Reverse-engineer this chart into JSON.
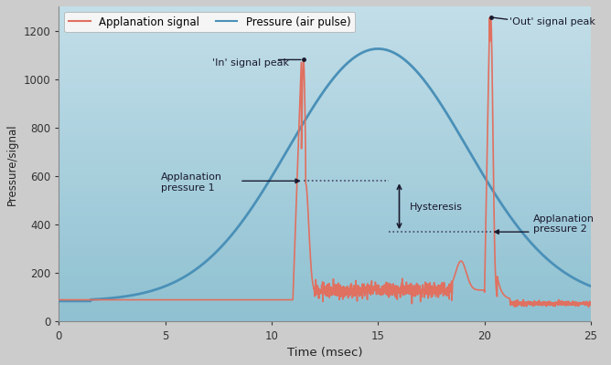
{
  "title": "",
  "xlabel": "Time (msec)",
  "ylabel": "Pressure/signal",
  "xlim": [
    0,
    25
  ],
  "ylim": [
    0,
    1300
  ],
  "xticks": [
    0,
    5,
    10,
    15,
    20,
    25
  ],
  "yticks": [
    0,
    200,
    400,
    600,
    800,
    1000,
    1200
  ],
  "plot_bg_color_top": "#b8dde6",
  "plot_bg_color_bot": "#8ec5d0",
  "outer_bg": "#d8d8d8",
  "applanation_color": "#e07060",
  "pressure_color": "#4a90b8",
  "legend_applanation": "Applanation signal",
  "legend_pressure": "Pressure (air pulse)",
  "annotation_in_peak": "'In' signal peak",
  "annotation_out_peak": "'Out' signal peak",
  "annotation_app1": "Applanation\npressure 1",
  "annotation_app2": "Applanation\npressure 2",
  "annotation_hysteresis": "Hysteresis",
  "app_pressure1_y": 580,
  "app_pressure2_y": 370,
  "peak1_x": 11.5,
  "peak1_y": 1080,
  "peak2_x": 20.3,
  "peak2_y": 1260
}
